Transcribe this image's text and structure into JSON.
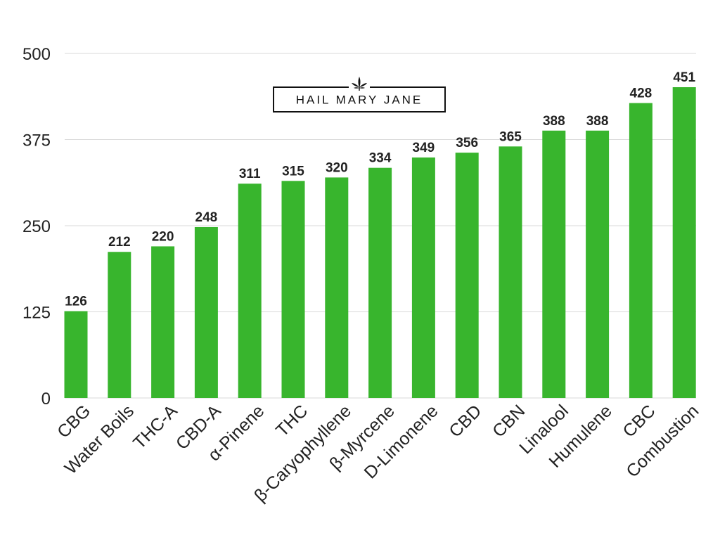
{
  "logo": {
    "text": "HAIL MARY JANE"
  },
  "colors": {
    "bar": "#38b52d",
    "grid": "#d9d9d9",
    "text": "#222222"
  },
  "chart_data": {
    "type": "bar",
    "categories": [
      "CBG",
      "Water Boils",
      "THC-A",
      "CBD-A",
      "α-Pinene",
      "THC",
      "β-Caryophyllene",
      "β-Myrcene",
      "D-Limonene",
      "CBD",
      "CBN",
      "Linalool",
      "Humulene",
      "CBC",
      "Combustion"
    ],
    "values": [
      126,
      212,
      220,
      248,
      311,
      315,
      320,
      334,
      349,
      356,
      365,
      388,
      388,
      428,
      451
    ],
    "ylim": [
      0,
      500
    ],
    "yticks": [
      0,
      125,
      250,
      375,
      500
    ],
    "grid": true,
    "data_labels": true
  }
}
